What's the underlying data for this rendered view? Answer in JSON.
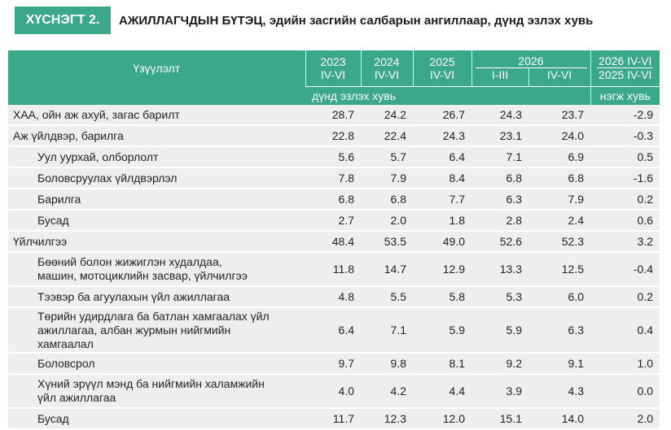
{
  "header": {
    "tag": "ХҮСНЭГТ 2.",
    "title": "АЖИЛЛАГЧДЫН БҮТЭЦ, эдийн засгийн салбарын ангиллаар, дүнд эзлэх хувь"
  },
  "columns": {
    "indicator": "Үзүүлэлт",
    "y2023_year": "2023",
    "y2023_period": "IV-VI",
    "y2024_year": "2024",
    "y2024_period": "IV-VI",
    "y2025_year": "2025",
    "y2025_period": "IV-VI",
    "y2026_year": "2026",
    "y2026_q1": "I-III",
    "y2026_q2": "IV-VI",
    "change_top": "2026 IV-VI",
    "change_bottom": "2025 IV-VI",
    "unit_share": "дүнд эзлэх хувь",
    "unit_change": "нэгж хувь"
  },
  "rows": [
    {
      "label": "ХАА, ойн аж ахуй, загас барилт",
      "v2023": "28.7",
      "v2024": "24.2",
      "v2025": "26.7",
      "v2026a": "24.3",
      "v2026b": "23.7",
      "change": "-2.9"
    },
    {
      "label": "Аж үйлдвэр, барилга",
      "v2023": "22.8",
      "v2024": "22.4",
      "v2025": "24.3",
      "v2026a": "23.1",
      "v2026b": "24.0",
      "change": "-0.3"
    },
    {
      "label": "Уул уурхай, олборлолт",
      "v2023": "5.6",
      "v2024": "5.7",
      "v2025": "6.4",
      "v2026a": "7.1",
      "v2026b": "6.9",
      "change": "0.5"
    },
    {
      "label": "Боловсруулах үйлдвэрлэл",
      "v2023": "7.8",
      "v2024": "7.9",
      "v2025": "8.4",
      "v2026a": "6.8",
      "v2026b": "6.8",
      "change": "-1.6"
    },
    {
      "label": "Барилга",
      "v2023": "6.8",
      "v2024": "6.8",
      "v2025": "7.7",
      "v2026a": "6.3",
      "v2026b": "7.9",
      "change": "0.2"
    },
    {
      "label": "Бусад",
      "v2023": "2.7",
      "v2024": "2.0",
      "v2025": "1.8",
      "v2026a": "2.8",
      "v2026b": "2.4",
      "change": "0.6"
    },
    {
      "label": "Үйлчилгээ",
      "v2023": "48.4",
      "v2024": "53.5",
      "v2025": "49.0",
      "v2026a": "52.6",
      "v2026b": "52.3",
      "change": "3.2"
    },
    {
      "label_line1": "Бөөний болон жижиглэн худалдаа,",
      "label_line2": "машин, мотоциклийн засвар, үйлчилгээ",
      "v2023": "11.8",
      "v2024": "14.7",
      "v2025": "12.9",
      "v2026a": "13.3",
      "v2026b": "12.5",
      "change": "-0.4"
    },
    {
      "label": "Тээвэр ба агуулахын үйл ажиллагаа",
      "v2023": "4.8",
      "v2024": "5.5",
      "v2025": "5.8",
      "v2026a": "5.3",
      "v2026b": "6.0",
      "change": "0.2"
    },
    {
      "label_line1": "Төрийн удирдлага ба батлан хамгаалах үйл",
      "label_line2": "ажиллагаа, албан журмын нийгмийн",
      "label_line3": "хамгаалал",
      "v2023": "6.4",
      "v2024": "7.1",
      "v2025": "5.9",
      "v2026a": "5.9",
      "v2026b": "6.3",
      "change": "0.4"
    },
    {
      "label": "Боловсрол",
      "v2023": "9.7",
      "v2024": "9.8",
      "v2025": "8.1",
      "v2026a": "9.2",
      "v2026b": "9.1",
      "change": "1.0"
    },
    {
      "label_line1": "Хүний эрүүл мэнд ба нийгмийн халамжийн",
      "label_line2": "үйл ажиллагаа",
      "v2023": "4.0",
      "v2024": "4.2",
      "v2025": "4.4",
      "v2026a": "3.9",
      "v2026b": "4.3",
      "change": "0.0"
    },
    {
      "label": "Бусад",
      "v2023": "11.7",
      "v2024": "12.3",
      "v2025": "12.0",
      "v2026a": "15.1",
      "v2026b": "14.0",
      "change": "2.0"
    }
  ],
  "colors": {
    "accent": "#3aa889",
    "row_shade": "#eeeeee"
  }
}
